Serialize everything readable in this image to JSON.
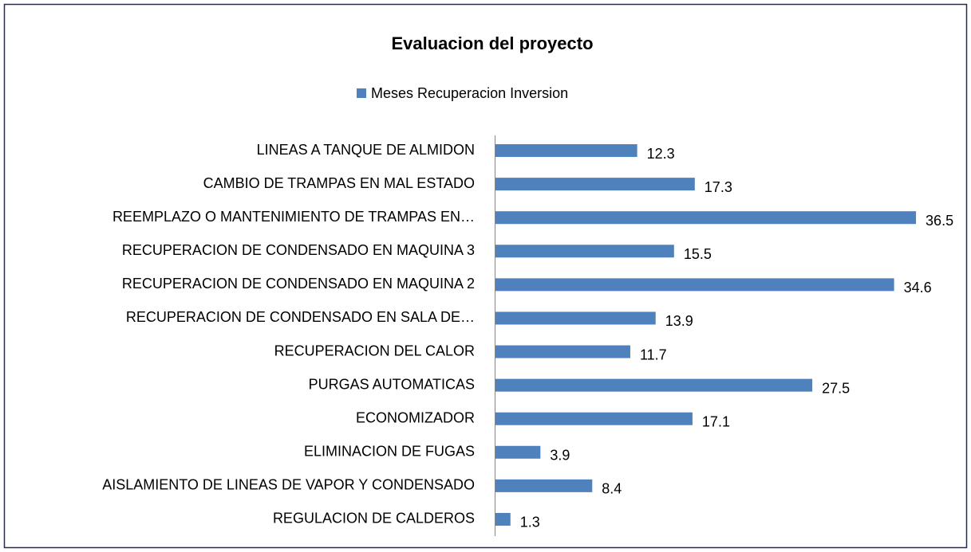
{
  "chart_data": {
    "type": "bar",
    "orientation": "horizontal",
    "title": "Evaluacion del proyecto",
    "categories": [
      "LINEAS A TANQUE DE ALMIDON",
      "CAMBIO DE TRAMPAS EN MAL ESTADO",
      "REEMPLAZO O MANTENIMIENTO DE TRAMPAS EN…",
      "RECUPERACION DE CONDENSADO EN MAQUINA 3",
      "RECUPERACION DE CONDENSADO EN MAQUINA 2",
      "RECUPERACION DE CONDENSADO EN SALA DE…",
      "RECUPERACION DEL CALOR",
      "PURGAS AUTOMATICAS",
      "ECONOMIZADOR",
      "ELIMINACION DE FUGAS",
      "AISLAMIENTO DE LINEAS DE VAPOR Y CONDENSADO",
      "REGULACION DE CALDEROS"
    ],
    "series": [
      {
        "name": "Meses Recuperacion Inversion",
        "color": "#4f81bd",
        "values": [
          12.3,
          17.3,
          36.5,
          15.5,
          34.6,
          13.9,
          11.7,
          27.5,
          17.1,
          3.9,
          8.4,
          1.3
        ]
      }
    ],
    "legend": "top"
  }
}
